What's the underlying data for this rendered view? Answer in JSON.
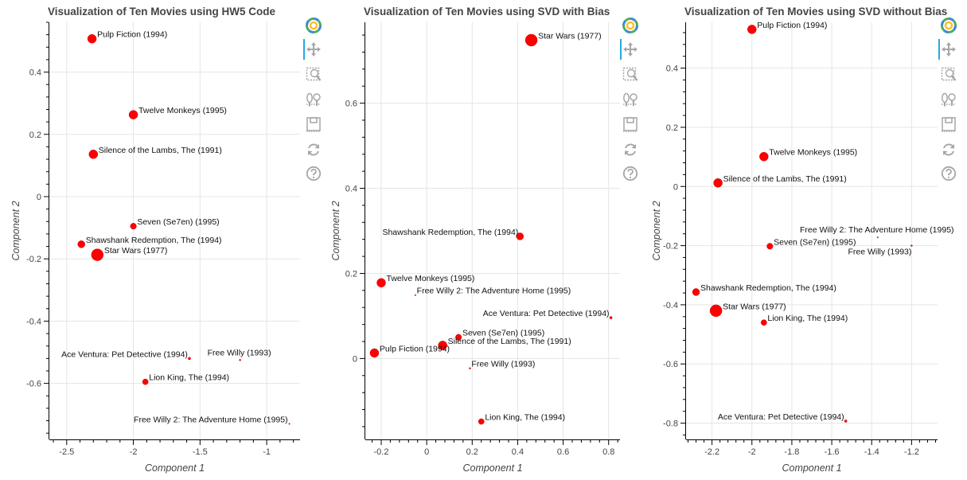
{
  "chart_data": [
    {
      "type": "scatter",
      "title": "Visualization of Ten Movies using HW5 Code",
      "xlabel": "Component 1",
      "ylabel": "Component 2",
      "xlim": [
        -2.63,
        -0.75
      ],
      "ylim": [
        -0.78,
        0.56
      ],
      "xticks": [
        -2.5,
        -2,
        -1.5,
        -1
      ],
      "yticks": [
        -0.6,
        -0.4,
        -0.2,
        0,
        0.2,
        0.4
      ],
      "grid": true,
      "points": [
        {
          "label": "Pulp Fiction (1994)",
          "x": -2.31,
          "y": 0.507,
          "size": 5.5,
          "anchor": "right"
        },
        {
          "label": "Twelve Monkeys (1995)",
          "x": -2.0,
          "y": 0.263,
          "size": 5.5,
          "anchor": "right"
        },
        {
          "label": "Silence of the Lambs, The (1991)",
          "x": -2.3,
          "y": 0.136,
          "size": 5.5,
          "anchor": "right"
        },
        {
          "label": "Seven (Se7en) (1995)",
          "x": -2.0,
          "y": -0.095,
          "size": 3.8,
          "anchor": "right"
        },
        {
          "label": "Shawshank Redemption, The (1994)",
          "x": -2.39,
          "y": -0.153,
          "size": 4.5,
          "anchor": "right"
        },
        {
          "label": "Star Wars (1977)",
          "x": -2.27,
          "y": -0.187,
          "size": 7.5,
          "anchor": "right"
        },
        {
          "label": "Ace Ventura: Pet Detective (1994)",
          "x": -1.58,
          "y": -0.52,
          "size": 1.6,
          "anchor": "left"
        },
        {
          "label": "Free Willy (1993)",
          "x": -1.2,
          "y": -0.525,
          "size": 1.0,
          "anchor": "above"
        },
        {
          "label": "Lion King, The (1994)",
          "x": -1.91,
          "y": -0.595,
          "size": 3.6,
          "anchor": "right"
        },
        {
          "label": "Free Willy 2: The Adventure Home (1995)",
          "x": -0.83,
          "y": -0.73,
          "size": 0.8,
          "anchor": "left"
        }
      ]
    },
    {
      "type": "scatter",
      "title": "Visualization of Ten Movies using SVD with Bias",
      "xlabel": "Component 1",
      "ylabel": "Component 2",
      "xlim": [
        -0.27,
        0.85
      ],
      "ylim": [
        -0.19,
        0.79
      ],
      "xticks": [
        -0.2,
        0,
        0.2,
        0.4,
        0.6,
        0.8
      ],
      "yticks": [
        0,
        0.2,
        0.4,
        0.6
      ],
      "grid": true,
      "points": [
        {
          "label": "Star Wars (1977)",
          "x": 0.46,
          "y": 0.748,
          "size": 7.5,
          "anchor": "right"
        },
        {
          "label": "Shawshank Redemption, The (1994)",
          "x": 0.41,
          "y": 0.287,
          "size": 4.5,
          "anchor": "left"
        },
        {
          "label": "Twelve Monkeys (1995)",
          "x": -0.2,
          "y": 0.178,
          "size": 5.5,
          "anchor": "right"
        },
        {
          "label": "Free Willy 2: The Adventure Home (1995)",
          "x": -0.05,
          "y": 0.149,
          "size": 0.8,
          "anchor": "right"
        },
        {
          "label": "Ace Ventura: Pet Detective (1994)",
          "x": 0.81,
          "y": 0.096,
          "size": 1.6,
          "anchor": "left"
        },
        {
          "label": "Seven (Se7en) (1995)",
          "x": 0.14,
          "y": 0.05,
          "size": 3.8,
          "anchor": "right"
        },
        {
          "label": "Silence of the Lambs, The (1991)",
          "x": 0.07,
          "y": 0.031,
          "size": 5.5,
          "anchor": "right"
        },
        {
          "label": "Pulp Fiction (1994)",
          "x": -0.23,
          "y": 0.013,
          "size": 5.5,
          "anchor": "right"
        },
        {
          "label": "Free Willy (1993)",
          "x": 0.19,
          "y": -0.023,
          "size": 1.0,
          "anchor": "right"
        },
        {
          "label": "Lion King, The (1994)",
          "x": 0.24,
          "y": -0.148,
          "size": 3.6,
          "anchor": "right"
        }
      ]
    },
    {
      "type": "scatter",
      "title": "Visualization of Ten Movies using SVD without Bias",
      "xlabel": "Component 1",
      "ylabel": "Component 2",
      "xlim": [
        -2.33,
        -1.07
      ],
      "ylim": [
        -0.855,
        0.555
      ],
      "xticks": [
        -2.2,
        -2,
        -1.8,
        -1.6,
        -1.4,
        -1.2
      ],
      "yticks": [
        -0.8,
        -0.6,
        -0.4,
        -0.2,
        0,
        0.2,
        0.4
      ],
      "grid": true,
      "points": [
        {
          "label": "Pulp Fiction (1994)",
          "x": -2.0,
          "y": 0.531,
          "size": 5.5,
          "anchor": "right"
        },
        {
          "label": "Twelve Monkeys (1995)",
          "x": -1.94,
          "y": 0.101,
          "size": 5.5,
          "anchor": "right"
        },
        {
          "label": "Silence of the Lambs, The (1991)",
          "x": -2.17,
          "y": 0.012,
          "size": 5.5,
          "anchor": "right"
        },
        {
          "label": "Free Willy 2: The Adventure Home (1995)",
          "x": -1.37,
          "y": -0.172,
          "size": 0.8,
          "anchor": "above"
        },
        {
          "label": "Seven (Se7en) (1995)",
          "x": -1.91,
          "y": -0.202,
          "size": 3.8,
          "anchor": "right"
        },
        {
          "label": "Free Willy (1993)",
          "x": -1.2,
          "y": -0.2,
          "size": 1.0,
          "anchor": "belowleft"
        },
        {
          "label": "Shawshank Redemption, The (1994)",
          "x": -2.28,
          "y": -0.357,
          "size": 4.5,
          "anchor": "right"
        },
        {
          "label": "Star Wars (1977)",
          "x": -2.18,
          "y": -0.42,
          "size": 7.5,
          "anchor": "right"
        },
        {
          "label": "Lion King, The (1994)",
          "x": -1.94,
          "y": -0.46,
          "size": 3.6,
          "anchor": "right"
        },
        {
          "label": "Ace Ventura: Pet Detective (1994)",
          "x": -1.53,
          "y": -0.793,
          "size": 1.6,
          "anchor": "left"
        }
      ]
    }
  ],
  "toolbar": {
    "tools": [
      {
        "icon": "bokeh-logo-icon",
        "active": false
      },
      {
        "icon": "pan-icon",
        "active": true
      },
      {
        "icon": "box-zoom-icon",
        "active": false
      },
      {
        "icon": "wheel-zoom-icon",
        "active": false
      },
      {
        "icon": "save-icon",
        "active": false
      },
      {
        "icon": "reset-icon",
        "active": false
      },
      {
        "icon": "help-icon",
        "active": false
      }
    ]
  },
  "colors": {
    "marker": "#ff0000",
    "marker_stroke": "#d40000",
    "grid": "#e5e5e5",
    "text": "#444444",
    "toolbar_icon": "#a6a6a6",
    "active_tool": "#26aae1"
  }
}
